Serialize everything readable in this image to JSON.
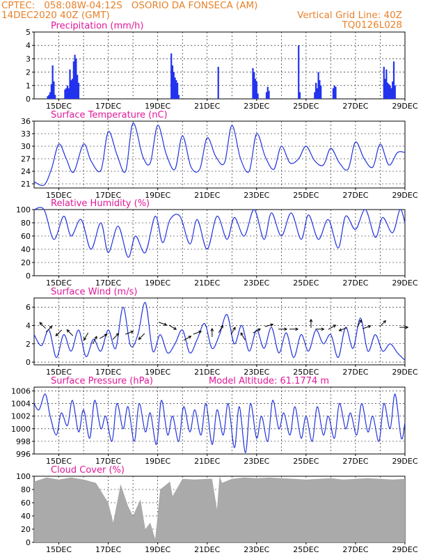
{
  "header": {
    "line1_left": "CPTEC:   058:08W-04:12S   OSORIO DA FONSECA (AM)",
    "line2_left": "14DEC2020 40Z (GMT)",
    "line2_right": "Vertical Grid Line: 40Z",
    "line3_right": "TQ0126L028"
  },
  "colors": {
    "line": "#2233dd",
    "bar": "#2233ee",
    "cloud": "#aaaaaa",
    "title": "#e0189a",
    "header": "#e8822a"
  },
  "x_ticks": [
    "15DEC",
    "17DEC",
    "19DEC",
    "21DEC",
    "23DEC",
    "25DEC",
    "27DEC",
    "29DEC"
  ],
  "chart_data": [
    {
      "id": "precip",
      "type": "bar",
      "title": "Precipitation (mm/h)",
      "x_unit": "days since 14DEC 00Z",
      "xlim": [
        0,
        15
      ],
      "ylim": [
        0,
        5
      ],
      "yticks": [
        "0",
        "1",
        "2",
        "3",
        "4",
        "5"
      ],
      "x": [
        0.55,
        0.6,
        0.65,
        0.7,
        0.75,
        0.8,
        0.85,
        1.25,
        1.3,
        1.35,
        1.4,
        1.45,
        1.5,
        1.55,
        1.6,
        1.65,
        1.7,
        1.75,
        1.8,
        5.55,
        5.6,
        5.65,
        5.7,
        5.75,
        5.8,
        5.85,
        7.45,
        8.85,
        8.9,
        8.95,
        9.0,
        9.05,
        9.4,
        9.45,
        9.5,
        10.7,
        10.75,
        11.35,
        11.4,
        11.45,
        11.5,
        11.55,
        11.6,
        12.1,
        12.15,
        12.2,
        14.15,
        14.2,
        14.25,
        14.3,
        14.35,
        14.4,
        14.45,
        14.5,
        14.55,
        14.6
      ],
      "values": [
        0.2,
        0.3,
        0.5,
        1.1,
        2.5,
        1.3,
        0.3,
        0.7,
        0.8,
        1.0,
        0.8,
        2.2,
        1.4,
        1.5,
        2.8,
        3.3,
        3.0,
        1.8,
        1.2,
        3.4,
        2.5,
        2.0,
        1.6,
        1.4,
        1.2,
        0.3,
        2.4,
        2.3,
        2.0,
        1.5,
        1.3,
        0.4,
        0.5,
        0.9,
        0.6,
        4.0,
        0.5,
        0.5,
        1.2,
        0.8,
        2.0,
        1.4,
        1.0,
        0.8,
        1.0,
        0.9,
        2.4,
        1.5,
        2.2,
        1.2,
        1.1,
        1.0,
        0.8,
        1.3,
        2.8,
        1.0
      ],
      "xlabel": "",
      "ylabel": ""
    },
    {
      "id": "temp",
      "type": "line",
      "title": "Surface Temperature (nC)",
      "xlim": [
        0,
        15
      ],
      "ylim": [
        20,
        36
      ],
      "yticks": [
        "21",
        "24",
        "27",
        "30",
        "33",
        "36"
      ],
      "ytick_values": [
        21,
        24,
        27,
        30,
        33,
        36
      ],
      "x": [
        0,
        0.4,
        0.7,
        1.0,
        1.3,
        1.6,
        2.0,
        2.3,
        2.7,
        3.0,
        3.35,
        3.7,
        4.0,
        4.4,
        4.7,
        5.0,
        5.35,
        5.7,
        6.0,
        6.35,
        6.7,
        7.0,
        7.35,
        7.7,
        8.0,
        8.35,
        8.7,
        9.0,
        9.35,
        9.7,
        10.0,
        10.35,
        10.7,
        11.0,
        11.35,
        11.7,
        12.0,
        12.35,
        12.7,
        13.0,
        13.35,
        13.7,
        14.0,
        14.35,
        14.7,
        15.0
      ],
      "values": [
        21.5,
        20.7,
        24.5,
        30.5,
        27.0,
        23.8,
        30.5,
        26.5,
        24.2,
        33.5,
        28.0,
        24.0,
        35.5,
        27.5,
        26.0,
        35.0,
        28.0,
        24.5,
        32.5,
        25.0,
        24.5,
        32.0,
        27.5,
        26.0,
        35.0,
        27.0,
        24.0,
        33.0,
        27.5,
        24.5,
        30.0,
        26.0,
        27.0,
        30.0,
        26.5,
        25.5,
        29.5,
        26.0,
        24.5,
        31.0,
        27.0,
        25.0,
        30.5,
        25.5,
        28.5,
        28.5
      ],
      "xlabel": "",
      "ylabel": ""
    },
    {
      "id": "rh",
      "type": "line",
      "title": "Relative Humidity (%)",
      "xlim": [
        0,
        15
      ],
      "ylim": [
        0,
        100
      ],
      "yticks": [
        "0",
        "20",
        "40",
        "60",
        "80",
        "100"
      ],
      "ytick_values": [
        0,
        20,
        40,
        60,
        80,
        100
      ],
      "x": [
        0,
        0.4,
        0.8,
        1.2,
        1.5,
        1.9,
        2.3,
        2.7,
        3.0,
        3.4,
        3.8,
        4.1,
        4.5,
        4.9,
        5.2,
        5.5,
        5.9,
        6.3,
        6.6,
        7.0,
        7.4,
        7.8,
        8.1,
        8.5,
        8.9,
        9.3,
        9.6,
        10.0,
        10.4,
        10.8,
        11.1,
        11.5,
        11.9,
        12.3,
        12.6,
        13.0,
        13.4,
        13.8,
        14.1,
        14.5,
        14.8,
        15.0
      ],
      "values": [
        100,
        100,
        55,
        90,
        60,
        85,
        40,
        80,
        35,
        75,
        28,
        60,
        35,
        90,
        50,
        85,
        90,
        48,
        85,
        40,
        90,
        55,
        88,
        60,
        100,
        55,
        95,
        60,
        95,
        55,
        92,
        55,
        85,
        42,
        90,
        70,
        100,
        58,
        88,
        65,
        100,
        80
      ],
      "xlabel": "",
      "ylabel": ""
    },
    {
      "id": "wind",
      "type": "line",
      "title": "Surface Wind (m/s)",
      "xlim": [
        0,
        15
      ],
      "ylim": [
        -0.3,
        7
      ],
      "yticks": [
        "0",
        "2",
        "4",
        "6"
      ],
      "ytick_values": [
        0,
        2,
        4,
        6
      ],
      "x": [
        0,
        0.3,
        0.6,
        0.9,
        1.2,
        1.5,
        1.8,
        2.1,
        2.4,
        2.7,
        3.0,
        3.3,
        3.6,
        3.9,
        4.2,
        4.5,
        4.8,
        5.1,
        5.4,
        5.7,
        6.0,
        6.3,
        6.6,
        6.9,
        7.2,
        7.5,
        7.8,
        8.1,
        8.4,
        8.7,
        9.0,
        9.3,
        9.6,
        9.9,
        10.2,
        10.5,
        10.8,
        11.1,
        11.4,
        11.7,
        12.0,
        12.3,
        12.6,
        12.9,
        13.2,
        13.5,
        13.8,
        14.1,
        14.4,
        14.7,
        15.0
      ],
      "values": [
        3.0,
        1.8,
        3.5,
        0.5,
        3.0,
        1.2,
        3.5,
        0.6,
        2.5,
        1.2,
        3.5,
        1.5,
        6.0,
        1.8,
        3.0,
        6.5,
        1.2,
        3.0,
        1.0,
        2.0,
        3.5,
        1.0,
        2.5,
        4.2,
        1.5,
        3.0,
        5.2,
        2.0,
        4.0,
        1.2,
        3.5,
        1.5,
        3.8,
        1.0,
        3.2,
        0.5,
        3.0,
        1.2,
        3.5,
        2.0,
        3.0,
        0.5,
        3.8,
        1.5,
        4.8,
        1.2,
        3.0,
        1.2,
        2.0,
        1.0,
        0.2
      ],
      "arrows": [
        {
          "x": 0.35,
          "y": 4.0,
          "angle": 135
        },
        {
          "x": 0.6,
          "y": 3.6,
          "angle": 45
        },
        {
          "x": 1.0,
          "y": 3.2,
          "angle": 225
        },
        {
          "x": 1.45,
          "y": 3.2,
          "angle": 135
        },
        {
          "x": 2.1,
          "y": 2.8,
          "angle": 240
        },
        {
          "x": 2.45,
          "y": 2.4,
          "angle": 60
        },
        {
          "x": 2.8,
          "y": 2.8,
          "angle": 30
        },
        {
          "x": 3.3,
          "y": 2.8,
          "angle": 45
        },
        {
          "x": 3.85,
          "y": 3.2,
          "angle": 20
        },
        {
          "x": 4.35,
          "y": 2.8,
          "angle": 225
        },
        {
          "x": 5.2,
          "y": 4.2,
          "angle": 340
        },
        {
          "x": 5.6,
          "y": 3.8,
          "angle": 330
        },
        {
          "x": 6.2,
          "y": 2.6,
          "angle": 30
        },
        {
          "x": 6.6,
          "y": 3.2,
          "angle": 20
        },
        {
          "x": 7.2,
          "y": 3.2,
          "angle": 90
        },
        {
          "x": 7.55,
          "y": 3.6,
          "angle": 60
        },
        {
          "x": 8.05,
          "y": 3.4,
          "angle": 60
        },
        {
          "x": 8.45,
          "y": 2.8,
          "angle": 120
        },
        {
          "x": 9.0,
          "y": 3.4,
          "angle": 30
        },
        {
          "x": 9.5,
          "y": 4.0,
          "angle": 15
        },
        {
          "x": 10.05,
          "y": 3.6,
          "angle": 0
        },
        {
          "x": 10.5,
          "y": 3.6,
          "angle": 0
        },
        {
          "x": 11.2,
          "y": 4.2,
          "angle": 90
        },
        {
          "x": 11.55,
          "y": 3.6,
          "angle": 0
        },
        {
          "x": 12.05,
          "y": 3.8,
          "angle": 30
        },
        {
          "x": 12.5,
          "y": 3.6,
          "angle": 200
        },
        {
          "x": 13.15,
          "y": 4.2,
          "angle": 60
        },
        {
          "x": 13.45,
          "y": 3.8,
          "angle": 20
        },
        {
          "x": 14.1,
          "y": 4.2,
          "angle": 45
        },
        {
          "x": 14.95,
          "y": 3.8,
          "angle": 0
        }
      ],
      "xlabel": "",
      "ylabel": ""
    },
    {
      "id": "pressure",
      "type": "line",
      "title": "Surface Pressure (hPa)",
      "annotation": "Model Altitude: 61.1774 m",
      "xlim": [
        0,
        15
      ],
      "ylim": [
        996,
        1006.6
      ],
      "yticks": [
        "996",
        "998",
        "1000",
        "1002",
        "1004",
        "1006"
      ],
      "ytick_values": [
        996,
        998,
        1000,
        1002,
        1004,
        1006
      ],
      "x": [
        0,
        0.2,
        0.45,
        0.65,
        0.9,
        1.1,
        1.35,
        1.55,
        1.8,
        2.0,
        2.25,
        2.45,
        2.7,
        2.9,
        3.15,
        3.35,
        3.6,
        3.8,
        4.05,
        4.25,
        4.5,
        4.7,
        4.95,
        5.15,
        5.4,
        5.6,
        5.85,
        6.05,
        6.3,
        6.5,
        6.75,
        6.95,
        7.2,
        7.4,
        7.65,
        7.85,
        8.1,
        8.3,
        8.55,
        8.75,
        9.0,
        9.2,
        9.45,
        9.65,
        9.9,
        10.1,
        10.35,
        10.55,
        10.8,
        11.0,
        11.25,
        11.45,
        11.7,
        11.9,
        12.15,
        12.35,
        12.6,
        12.8,
        13.05,
        13.25,
        13.5,
        13.7,
        13.95,
        14.15,
        14.4,
        14.6,
        14.85,
        15.0
      ],
      "values": [
        1004.0,
        1003.0,
        1005.5,
        1002.0,
        999.0,
        1002.5,
        1000.5,
        1004.5,
        999.5,
        1003.0,
        998.5,
        1004.5,
        1000.0,
        1002.0,
        998.0,
        1004.0,
        1000.0,
        1003.5,
        998.0,
        1004.0,
        999.5,
        1002.5,
        997.5,
        1004.5,
        999.0,
        1002.0,
        998.0,
        1003.5,
        999.5,
        1003.0,
        999.0,
        1004.0,
        997.5,
        1003.0,
        999.0,
        1004.0,
        997.0,
        1003.5,
        996.2,
        1004.0,
        998.5,
        1002.0,
        998.0,
        1004.5,
        1000.0,
        1002.5,
        999.0,
        1003.5,
        998.5,
        1002.0,
        998.0,
        1003.5,
        999.0,
        1002.0,
        998.5,
        1004.0,
        1000.0,
        1002.5,
        999.0,
        1004.0,
        999.5,
        1002.0,
        998.0,
        1004.0,
        1000.0,
        1005.5,
        998.5,
        1001.0
      ],
      "xlabel": "",
      "ylabel": ""
    },
    {
      "id": "cloud",
      "type": "area",
      "title": "Cloud Cover (%)",
      "xlim": [
        0,
        15
      ],
      "ylim": [
        0,
        100
      ],
      "yticks": [
        "0",
        "20",
        "40",
        "60",
        "80",
        "100"
      ],
      "ytick_values": [
        0,
        20,
        40,
        60,
        80,
        100
      ],
      "x": [
        0,
        0.5,
        1.0,
        1.5,
        2.0,
        2.5,
        3.0,
        3.2,
        3.5,
        3.8,
        4.0,
        4.3,
        4.5,
        4.7,
        4.9,
        5.1,
        5.5,
        5.6,
        6.0,
        6.5,
        7.0,
        7.2,
        7.4,
        7.5,
        7.6,
        8.0,
        8.5,
        9.0,
        9.5,
        10.0,
        10.5,
        11.0,
        11.5,
        12.0,
        12.5,
        13.0,
        13.5,
        14.0,
        14.5,
        15.0
      ],
      "values": [
        92,
        98,
        95,
        98,
        95,
        90,
        60,
        30,
        88,
        55,
        40,
        65,
        20,
        30,
        5,
        80,
        92,
        70,
        96,
        95,
        96,
        96,
        50,
        100,
        90,
        96,
        98,
        97,
        98,
        97,
        96,
        95,
        96,
        97,
        95,
        96,
        97,
        96,
        95,
        96
      ],
      "xlabel": "",
      "ylabel": ""
    }
  ]
}
